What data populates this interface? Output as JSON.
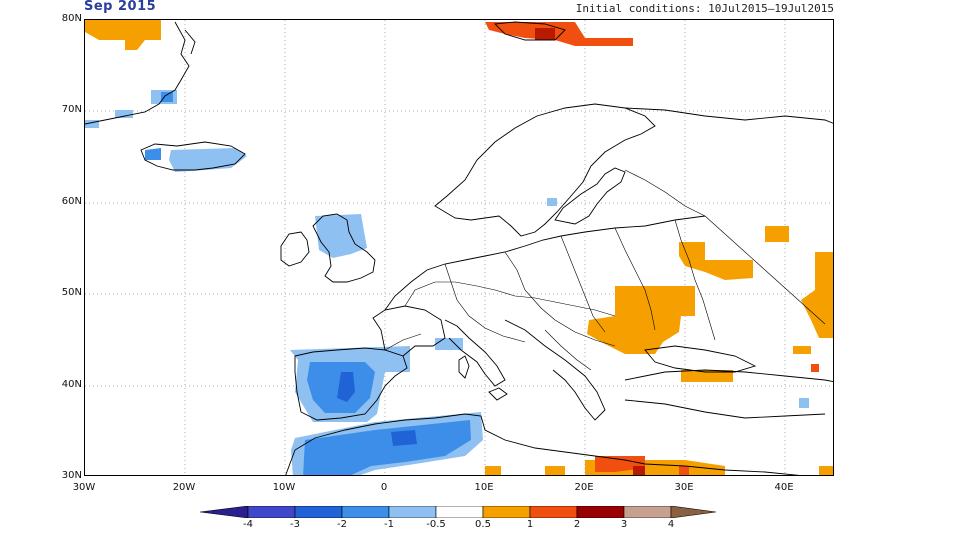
{
  "header": {
    "title": "Sep 2015",
    "subtitle": "Initial conditions: 10Jul2015–19Jul2015"
  },
  "map": {
    "lat_ticks": [
      "30N",
      "40N",
      "50N",
      "60N",
      "70N",
      "80N"
    ],
    "lon_ticks": [
      "30W",
      "20W",
      "10W",
      "0",
      "10E",
      "20E",
      "30E",
      "40E"
    ],
    "lat_range": [
      30,
      80
    ],
    "lon_range": [
      -30,
      45
    ],
    "grid": "dotted"
  },
  "colorbar": {
    "labels": [
      "-4",
      "-3",
      "-2",
      "-1",
      "-0.5",
      "0.5",
      "1",
      "2",
      "3",
      "4"
    ],
    "colors": [
      "#2a1f8f",
      "#3f46c9",
      "#1f63d6",
      "#3d8ee8",
      "#8ec0f2",
      "#ffffff",
      "#f5a000",
      "#f04f10",
      "#990000",
      "#c8a090",
      "#8a6040"
    ]
  },
  "anomalies": {
    "colors": {
      "neg2": "#1f63d6",
      "neg1": "#3d8ee8",
      "neg05": "#8ec0f2",
      "pos05": "#f5a000",
      "pos1": "#f04f10",
      "pos2": "#b81a00"
    }
  }
}
